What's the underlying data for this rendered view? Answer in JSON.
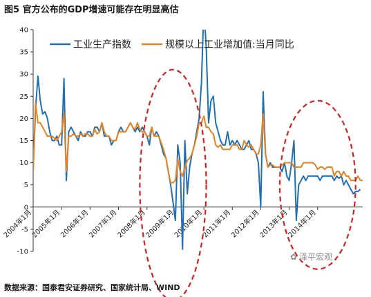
{
  "figure": {
    "title": "图5 官方公布的GDP增速可能存在明显高估",
    "source": "数据来源：国泰君安证券研究、国家统计局、WIND",
    "watermark": "泽平宏观"
  },
  "colors": {
    "series1": "#1f6fb5",
    "series2": "#e8821e",
    "annotation": "#d62020",
    "axis": "#333333"
  },
  "chart_data": {
    "type": "line",
    "title": "",
    "xlabel": "",
    "ylabel": "",
    "ylim": [
      -10,
      40
    ],
    "yticks": [
      -10,
      -5,
      0,
      5,
      10,
      15,
      20,
      25,
      30,
      35,
      40
    ],
    "xlim": [
      "2004-01",
      "2015-08"
    ],
    "xtick_labels": [
      "2004年1月",
      "2005年1月",
      "2006年1月",
      "2007年1月",
      "2008年1月",
      "2009年1月",
      "2010年1月",
      "2011年1月",
      "2012年1月",
      "2013年1月",
      "2014年1月"
    ],
    "grid": false,
    "legend_position": "top",
    "series": [
      {
        "name": "工业生产指数",
        "color": "#1f6fb5",
        "points": [
          [
            "2004-01",
            8
          ],
          [
            "2004-02",
            22
          ],
          [
            "2004-03",
            29.5
          ],
          [
            "2004-04",
            24
          ],
          [
            "2004-05",
            21
          ],
          [
            "2004-06",
            21.5
          ],
          [
            "2004-07",
            20
          ],
          [
            "2004-08",
            17
          ],
          [
            "2004-09",
            15
          ],
          [
            "2004-10",
            15
          ],
          [
            "2004-11",
            16
          ],
          [
            "2004-12",
            14
          ],
          [
            "2005-01",
            14
          ],
          [
            "2005-02",
            29
          ],
          [
            "2005-03",
            6
          ],
          [
            "2005-04",
            17
          ],
          [
            "2005-05",
            18
          ],
          [
            "2005-06",
            17
          ],
          [
            "2005-07",
            16
          ],
          [
            "2005-08",
            15
          ],
          [
            "2005-09",
            17
          ],
          [
            "2005-10",
            16
          ],
          [
            "2005-11",
            16
          ],
          [
            "2005-12",
            17
          ],
          [
            "2006-01",
            17
          ],
          [
            "2006-02",
            16
          ],
          [
            "2006-03",
            18
          ],
          [
            "2006-04",
            18
          ],
          [
            "2006-05",
            17
          ],
          [
            "2006-06",
            19
          ],
          [
            "2006-07",
            16
          ],
          [
            "2006-08",
            16
          ],
          [
            "2006-09",
            16
          ],
          [
            "2006-10",
            14
          ],
          [
            "2006-11",
            15
          ],
          [
            "2006-12",
            15
          ],
          [
            "2007-01",
            17
          ],
          [
            "2007-02",
            18
          ],
          [
            "2007-03",
            17
          ],
          [
            "2007-04",
            17
          ],
          [
            "2007-05",
            18
          ],
          [
            "2007-06",
            19
          ],
          [
            "2007-07",
            18
          ],
          [
            "2007-08",
            17
          ],
          [
            "2007-09",
            18
          ],
          [
            "2007-10",
            17
          ],
          [
            "2007-11",
            18
          ],
          [
            "2007-12",
            17
          ],
          [
            "2008-01",
            16
          ],
          [
            "2008-02",
            14
          ],
          [
            "2008-03",
            18
          ],
          [
            "2008-04",
            16
          ],
          [
            "2008-05",
            17
          ],
          [
            "2008-06",
            16
          ],
          [
            "2008-07",
            14
          ],
          [
            "2008-08",
            12
          ],
          [
            "2008-09",
            11
          ],
          [
            "2008-10",
            8
          ],
          [
            "2008-11",
            5
          ],
          [
            "2008-12",
            1
          ],
          [
            "2009-01",
            -3
          ],
          [
            "2009-02",
            14
          ],
          [
            "2009-03",
            10
          ],
          [
            "2009-04",
            -9.5
          ],
          [
            "2009-05",
            15
          ],
          [
            "2009-06",
            3
          ],
          [
            "2009-07",
            9
          ],
          [
            "2009-08",
            12
          ],
          [
            "2009-09",
            14
          ],
          [
            "2009-10",
            17
          ],
          [
            "2009-11",
            20
          ],
          [
            "2009-12",
            28
          ],
          [
            "2010-01",
            45
          ],
          [
            "2010-02",
            36
          ],
          [
            "2010-03",
            19
          ],
          [
            "2010-04",
            24
          ],
          [
            "2010-05",
            25
          ],
          [
            "2010-06",
            19
          ],
          [
            "2010-07",
            17
          ],
          [
            "2010-08",
            15
          ],
          [
            "2010-09",
            14
          ],
          [
            "2010-10",
            14
          ],
          [
            "2010-11",
            17
          ],
          [
            "2010-12",
            14
          ],
          [
            "2011-01",
            15
          ],
          [
            "2011-02",
            14
          ],
          [
            "2011-03",
            15
          ],
          [
            "2011-04",
            14
          ],
          [
            "2011-05",
            13
          ],
          [
            "2011-06",
            13
          ],
          [
            "2011-07",
            14
          ],
          [
            "2011-08",
            15
          ],
          [
            "2011-09",
            13
          ],
          [
            "2011-10",
            13
          ],
          [
            "2011-11",
            12
          ],
          [
            "2011-12",
            10
          ],
          [
            "2012-01",
            0
          ],
          [
            "2012-02",
            26
          ],
          [
            "2012-03",
            12
          ],
          [
            "2012-04",
            9
          ],
          [
            "2012-05",
            10
          ],
          [
            "2012-06",
            9
          ],
          [
            "2012-07",
            9
          ],
          [
            "2012-08",
            9
          ],
          [
            "2012-09",
            9
          ],
          [
            "2012-10",
            8
          ],
          [
            "2012-11",
            10
          ],
          [
            "2012-12",
            7
          ],
          [
            "2013-01",
            6
          ],
          [
            "2013-02",
            10
          ],
          [
            "2013-03",
            15
          ],
          [
            "2013-04",
            -3
          ],
          [
            "2013-05",
            5
          ],
          [
            "2013-06",
            6
          ],
          [
            "2013-07",
            7
          ],
          [
            "2013-08",
            6
          ],
          [
            "2013-09",
            7
          ],
          [
            "2013-10",
            7
          ],
          [
            "2013-11",
            7
          ],
          [
            "2013-12",
            7
          ],
          [
            "2014-01",
            7
          ],
          [
            "2014-02",
            6
          ],
          [
            "2014-03",
            7
          ],
          [
            "2014-04",
            7
          ],
          [
            "2014-05",
            7
          ],
          [
            "2014-06",
            7
          ],
          [
            "2014-07",
            7
          ],
          [
            "2014-08",
            6
          ],
          [
            "2014-09",
            7
          ],
          [
            "2014-10",
            6.5
          ],
          [
            "2014-11",
            7
          ],
          [
            "2014-12",
            5
          ],
          [
            "2015-01",
            6
          ],
          [
            "2015-02",
            5
          ],
          [
            "2015-03",
            4
          ],
          [
            "2015-04",
            3
          ],
          [
            "2015-05",
            3.5
          ],
          [
            "2015-06",
            3.5
          ],
          [
            "2015-07",
            4
          ]
        ]
      },
      {
        "name": "规模以上工业增加值:当月同比",
        "color": "#e8821e",
        "points": [
          [
            "2004-01",
            8
          ],
          [
            "2004-02",
            23.5
          ],
          [
            "2004-03",
            19
          ],
          [
            "2004-04",
            19
          ],
          [
            "2004-05",
            18
          ],
          [
            "2004-06",
            17
          ],
          [
            "2004-07",
            16
          ],
          [
            "2004-08",
            16
          ],
          [
            "2004-09",
            16
          ],
          [
            "2004-10",
            15.5
          ],
          [
            "2004-11",
            15
          ],
          [
            "2004-12",
            16
          ],
          [
            "2005-01",
            17
          ],
          [
            "2005-02",
            21
          ],
          [
            "2005-03",
            8
          ],
          [
            "2005-04",
            16
          ],
          [
            "2005-05",
            16
          ],
          [
            "2005-06",
            16.5
          ],
          [
            "2005-07",
            16
          ],
          [
            "2005-08",
            16
          ],
          [
            "2005-09",
            16.5
          ],
          [
            "2005-10",
            16
          ],
          [
            "2005-11",
            16.5
          ],
          [
            "2005-12",
            16.5
          ],
          [
            "2006-01",
            16
          ],
          [
            "2006-02",
            16
          ],
          [
            "2006-03",
            17.5
          ],
          [
            "2006-04",
            16.5
          ],
          [
            "2006-05",
            17
          ],
          [
            "2006-06",
            19
          ],
          [
            "2006-07",
            17
          ],
          [
            "2006-08",
            16
          ],
          [
            "2006-09",
            16
          ],
          [
            "2006-10",
            15
          ],
          [
            "2006-11",
            15
          ],
          [
            "2006-12",
            15
          ],
          [
            "2007-01",
            17
          ],
          [
            "2007-02",
            17
          ],
          [
            "2007-03",
            17
          ],
          [
            "2007-04",
            17
          ],
          [
            "2007-05",
            18
          ],
          [
            "2007-06",
            19
          ],
          [
            "2007-07",
            18
          ],
          [
            "2007-08",
            17.5
          ],
          [
            "2007-09",
            19
          ],
          [
            "2007-10",
            17.5
          ],
          [
            "2007-11",
            17
          ],
          [
            "2007-12",
            17
          ],
          [
            "2008-01",
            16
          ],
          [
            "2008-02",
            16
          ],
          [
            "2008-03",
            18
          ],
          [
            "2008-04",
            16
          ],
          [
            "2008-05",
            16
          ],
          [
            "2008-06",
            16
          ],
          [
            "2008-07",
            14.5
          ],
          [
            "2008-08",
            13
          ],
          [
            "2008-09",
            11
          ],
          [
            "2008-10",
            8
          ],
          [
            "2008-11",
            5.5
          ],
          [
            "2008-12",
            5.5
          ],
          [
            "2009-01",
            6
          ],
          [
            "2009-02",
            11
          ],
          [
            "2009-03",
            8
          ],
          [
            "2009-04",
            7
          ],
          [
            "2009-05",
            9
          ],
          [
            "2009-06",
            10.5
          ],
          [
            "2009-07",
            11
          ],
          [
            "2009-08",
            12
          ],
          [
            "2009-09",
            14
          ],
          [
            "2009-10",
            16
          ],
          [
            "2009-11",
            19
          ],
          [
            "2009-12",
            19
          ],
          [
            "2010-01",
            20.5
          ],
          [
            "2010-02",
            18
          ],
          [
            "2010-03",
            18
          ],
          [
            "2010-04",
            17
          ],
          [
            "2010-05",
            16.5
          ],
          [
            "2010-06",
            14
          ],
          [
            "2010-07",
            13.5
          ],
          [
            "2010-08",
            14
          ],
          [
            "2010-09",
            13
          ],
          [
            "2010-10",
            13
          ],
          [
            "2010-11",
            13
          ],
          [
            "2010-12",
            13
          ],
          [
            "2011-01",
            14
          ],
          [
            "2011-02",
            14
          ],
          [
            "2011-03",
            14
          ],
          [
            "2011-04",
            13
          ],
          [
            "2011-05",
            13
          ],
          [
            "2011-06",
            15
          ],
          [
            "2011-07",
            14
          ],
          [
            "2011-08",
            13.5
          ],
          [
            "2011-09",
            14
          ],
          [
            "2011-10",
            13
          ],
          [
            "2011-11",
            12
          ],
          [
            "2011-12",
            12
          ],
          [
            "2012-01",
            14
          ],
          [
            "2012-02",
            21
          ],
          [
            "2012-03",
            12
          ],
          [
            "2012-04",
            9
          ],
          [
            "2012-05",
            9.5
          ],
          [
            "2012-06",
            9.5
          ],
          [
            "2012-07",
            9
          ],
          [
            "2012-08",
            9
          ],
          [
            "2012-09",
            9
          ],
          [
            "2012-10",
            9.5
          ],
          [
            "2012-11",
            10
          ],
          [
            "2012-12",
            10
          ],
          [
            "2013-01",
            10
          ],
          [
            "2013-02",
            10
          ],
          [
            "2013-03",
            9
          ],
          [
            "2013-04",
            9
          ],
          [
            "2013-05",
            9
          ],
          [
            "2013-06",
            9
          ],
          [
            "2013-07",
            10
          ],
          [
            "2013-08",
            10
          ],
          [
            "2013-09",
            10
          ],
          [
            "2013-10",
            10
          ],
          [
            "2013-11",
            10
          ],
          [
            "2013-12",
            9.5
          ],
          [
            "2014-01",
            8.5
          ],
          [
            "2014-02",
            9
          ],
          [
            "2014-03",
            9
          ],
          [
            "2014-04",
            8.5
          ],
          [
            "2014-05",
            9
          ],
          [
            "2014-06",
            9
          ],
          [
            "2014-07",
            9
          ],
          [
            "2014-08",
            7
          ],
          [
            "2014-09",
            8
          ],
          [
            "2014-10",
            8
          ],
          [
            "2014-11",
            7
          ],
          [
            "2014-12",
            8
          ],
          [
            "2015-01",
            7
          ],
          [
            "2015-02",
            7
          ],
          [
            "2015-03",
            6
          ],
          [
            "2015-04",
            6
          ],
          [
            "2015-05",
            6
          ],
          [
            "2015-06",
            7
          ],
          [
            "2015-07",
            6
          ],
          [
            "2015-08",
            6
          ]
        ]
      }
    ],
    "annotations": [
      {
        "type": "dashed-ellipse",
        "center": [
          "2008-12",
          5
        ],
        "radius_months": 14,
        "radius_value": 26
      },
      {
        "type": "dashed-ellipse",
        "center": [
          "2014-01",
          5
        ],
        "radius_months": 16,
        "radius_value": 19
      }
    ]
  }
}
